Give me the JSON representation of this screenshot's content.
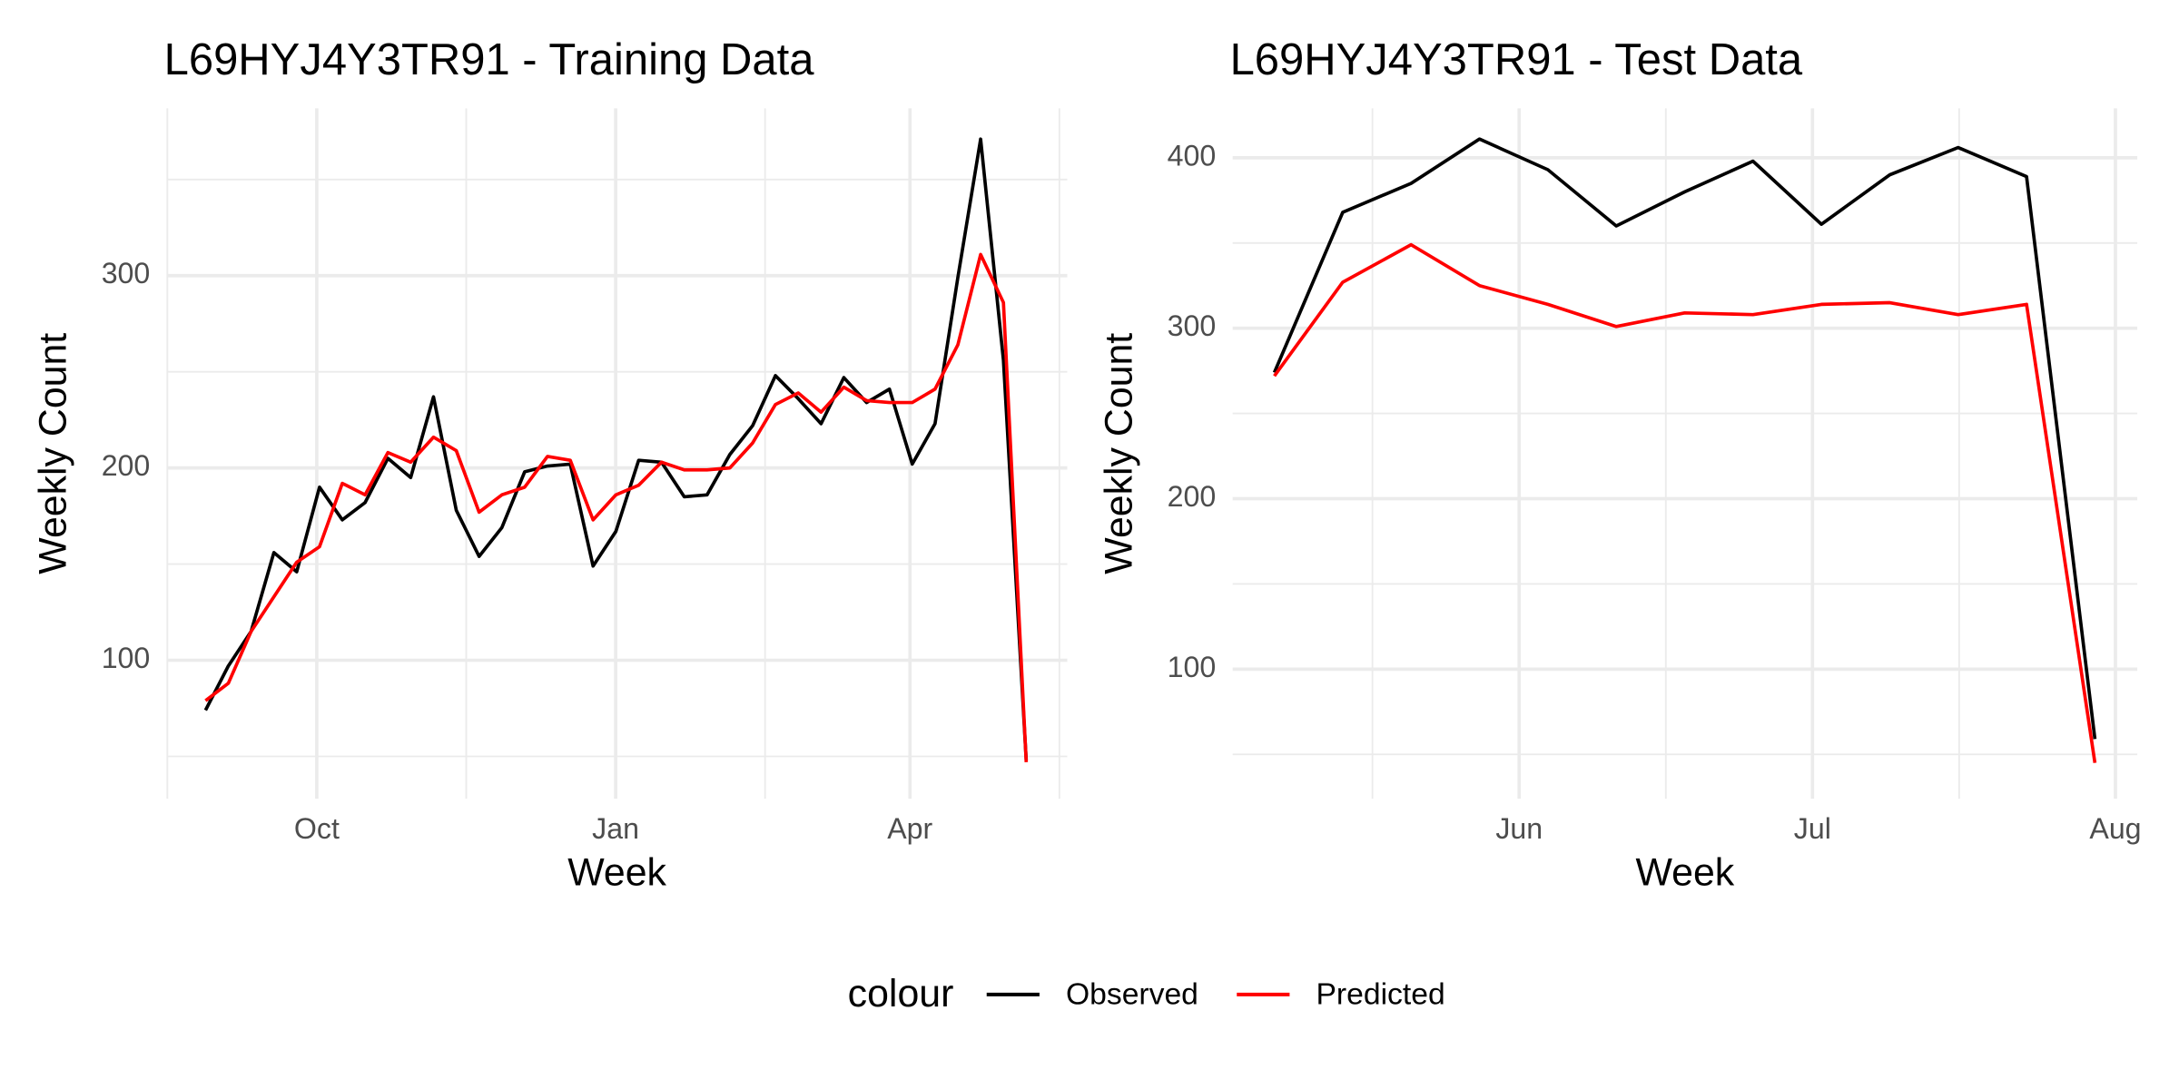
{
  "chart_data": [
    {
      "type": "line",
      "title": "L69HYJ4Y3TR91 - Training Data",
      "xlabel": "Week",
      "ylabel": "Weekly Count",
      "x": [
        0,
        1,
        2,
        3,
        4,
        5,
        6,
        7,
        8,
        9,
        10,
        11,
        12,
        13,
        14,
        15,
        16,
        17,
        18,
        19,
        20,
        21,
        22,
        23,
        24,
        25,
        26,
        27,
        28,
        29,
        30,
        31,
        32,
        33,
        34,
        35,
        36
      ],
      "series": [
        {
          "name": "Observed",
          "color": "#000000",
          "values": [
            74,
            97,
            115,
            156,
            146,
            190,
            173,
            182,
            205,
            195,
            237,
            178,
            154,
            169,
            198,
            201,
            202,
            149,
            167,
            204,
            203,
            185,
            186,
            207,
            222,
            248,
            236,
            223,
            247,
            234,
            241,
            202,
            223,
            299,
            371,
            256,
            48
          ]
        },
        {
          "name": "Predicted",
          "color": "#ff0000",
          "values": [
            79,
            88,
            115,
            133,
            151,
            159,
            192,
            186,
            208,
            203,
            216,
            209,
            177,
            186,
            190,
            206,
            204,
            173,
            186,
            191,
            203,
            199,
            199,
            200,
            213,
            233,
            239,
            229,
            242,
            235,
            234,
            234,
            241,
            264,
            311,
            286,
            47
          ]
        }
      ],
      "xlim": [
        -1.7,
        37.8
      ],
      "xticks": [
        {
          "value": 4.88,
          "label": "Oct"
        },
        {
          "value": 17.99,
          "label": "Jan"
        },
        {
          "value": 30.9,
          "label": "Apr"
        }
      ],
      "ylim": [
        28,
        387
      ],
      "yticks": [
        100,
        200,
        300
      ],
      "grid": true,
      "legend_title": "colour",
      "legend": "bottom"
    },
    {
      "type": "line",
      "title": "L69HYJ4Y3TR91 - Test Data",
      "xlabel": "Week",
      "ylabel": "Weekly Count",
      "x": [
        0,
        1,
        2,
        3,
        4,
        5,
        6,
        7,
        8,
        9,
        10,
        11,
        12
      ],
      "series": [
        {
          "name": "Observed",
          "color": "#000000",
          "values": [
            274,
            368,
            385,
            411,
            393,
            360,
            380,
            398,
            361,
            390,
            406,
            389,
            59
          ]
        },
        {
          "name": "Predicted",
          "color": "#ff0000",
          "values": [
            272,
            327,
            349,
            325,
            314,
            301,
            309,
            308,
            314,
            315,
            308,
            314,
            45
          ]
        }
      ],
      "xlim": [
        -0.61,
        12.62
      ],
      "xticks": [
        {
          "value": 3.58,
          "label": "Jun"
        },
        {
          "value": 7.87,
          "label": "Jul"
        },
        {
          "value": 12.3,
          "label": "Aug"
        }
      ],
      "ylim": [
        24,
        429
      ],
      "yticks": [
        100,
        200,
        300,
        400
      ],
      "grid": true
    }
  ]
}
